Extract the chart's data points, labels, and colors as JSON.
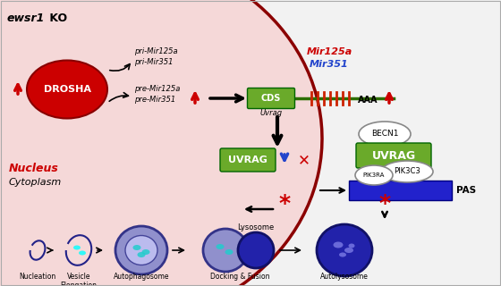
{
  "title_italic": "ewsr1",
  "title_rest": " KO",
  "bg_color": "#f2f2f2",
  "nucleus_color": "#f5d8d8",
  "nucleus_edge_color": "#8B0000",
  "drosha_color": "#cc0000",
  "drosha_text": "DROSHA",
  "uvrag_box_color": "#6aaa2a",
  "uvrag_text": "UVRAG",
  "becn1_text": "BECN1",
  "pik3c3_text": "PIK3C3",
  "pik3ra_text": "PIK3RA",
  "pas_color": "#2222cc",
  "pas_text": "PAS",
  "cds_color": "#6aaa2a",
  "cds_text": "CDS",
  "uvrag_sub": "Uvrag",
  "mir125a_text": "Mir125a",
  "mir351_text": "Mir351",
  "aaa_text": "AAA",
  "nucleus_label": "Nucleus",
  "cytoplasm_label": "Cytoplasm",
  "stage_labels": [
    "Nucleation",
    "Vesicle\nElongation",
    "Autophagosome",
    "Docking & Fusion",
    "Autolysosome"
  ],
  "lysosome_label": "Lysosome",
  "red_color": "#cc0000",
  "blue_color": "#2244cc",
  "dark_green": "#2d6e00",
  "dark_red": "#8B0000",
  "fig_width": 5.6,
  "fig_height": 3.2
}
